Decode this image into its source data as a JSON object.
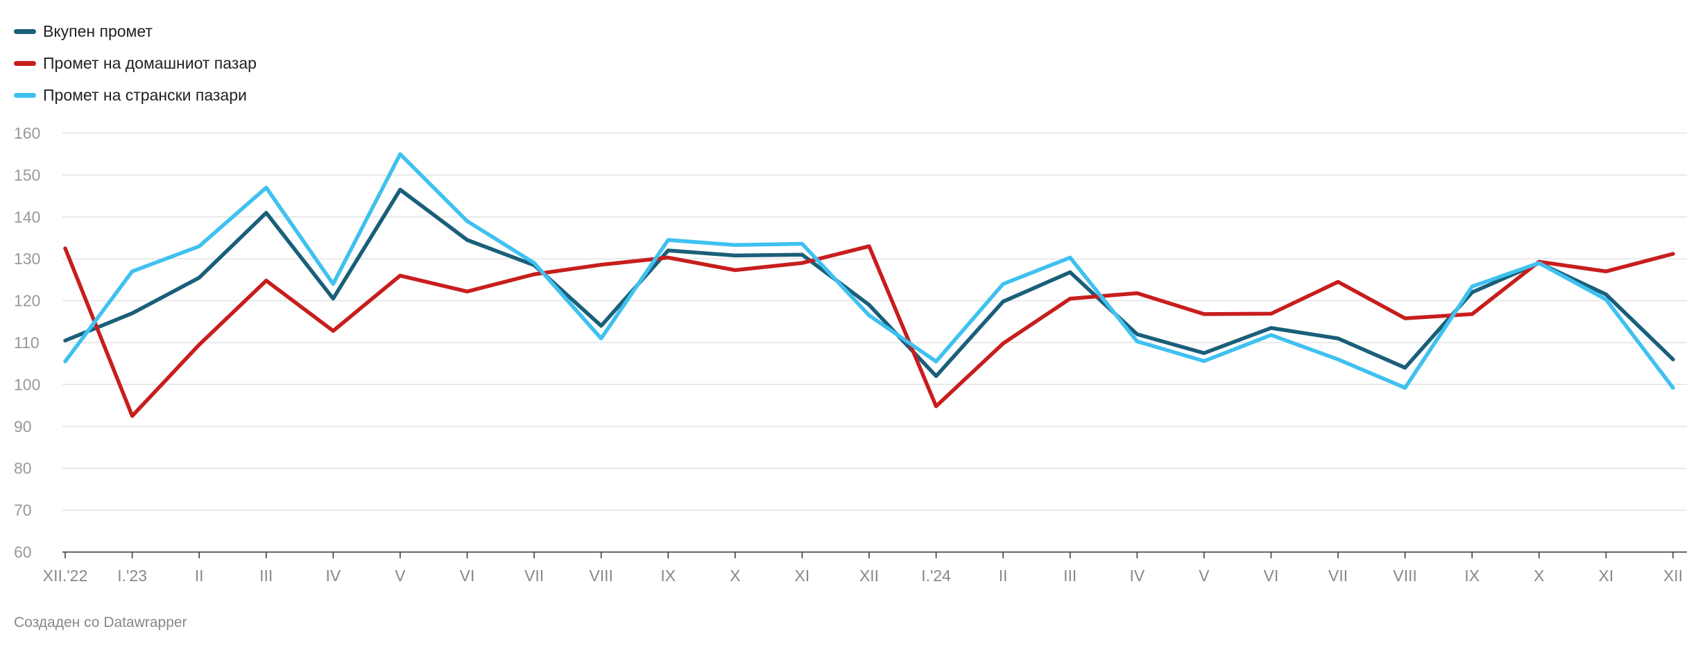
{
  "chart_data": {
    "type": "line",
    "categories": [
      "XII.'22",
      "I.'23",
      "II",
      "III",
      "IV",
      "V",
      "VI",
      "VII",
      "VIII",
      "IX",
      "X",
      "XI",
      "XII",
      "I.'24",
      "II",
      "III",
      "IV",
      "V",
      "VI",
      "VII",
      "VIII",
      "IX",
      "X",
      "XI",
      "XII"
    ],
    "ylim": [
      60,
      160
    ],
    "yticks": [
      60,
      70,
      80,
      90,
      100,
      110,
      120,
      130,
      140,
      150,
      160
    ],
    "grid": true,
    "legend_position": "top-left",
    "series": [
      {
        "name": "Вкупен промет",
        "color": "#1a5f7a",
        "values": [
          110.5,
          117,
          125.5,
          141,
          120.5,
          146.5,
          134.5,
          128.5,
          114,
          132,
          130.8,
          131,
          119,
          102,
          119.8,
          126.8,
          112,
          107.5,
          113.5,
          111,
          104,
          122,
          129,
          121.5,
          106
        ]
      },
      {
        "name": "Промет на домашниот пазар",
        "color": "#c71e1d",
        "values": [
          132.5,
          92.5,
          109.5,
          124.8,
          112.8,
          126,
          122.2,
          126.3,
          128.6,
          130.3,
          127.3,
          129,
          133,
          94.8,
          109.8,
          120.5,
          121.8,
          116.8,
          116.9,
          124.5,
          115.8,
          116.8,
          129.3,
          127,
          131.2
        ]
      },
      {
        "name": "Промет на странски пазари",
        "color": "#3fc1f0",
        "values": [
          105.5,
          127,
          133,
          147,
          124,
          155,
          139,
          129,
          111,
          134.5,
          133.3,
          133.6,
          116.5,
          105.5,
          124,
          130.3,
          110.3,
          105.6,
          111.8,
          106,
          99.2,
          123.4,
          129,
          120.3,
          99.2
        ]
      }
    ]
  },
  "footer": "Создаден со Datawrapper"
}
